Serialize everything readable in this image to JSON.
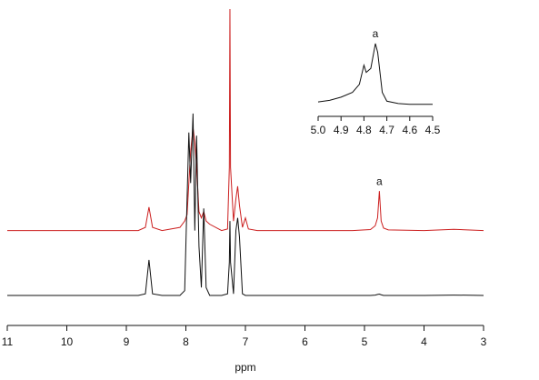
{
  "chart_data": [
    {
      "type": "line",
      "xlabel": "ppm",
      "xlim": [
        11,
        3
      ],
      "xticks": [
        11,
        10,
        9,
        8,
        7,
        6,
        5,
        4,
        3
      ],
      "ylim": [
        0,
        100
      ],
      "x": [
        11,
        10,
        9,
        8.8,
        8.68,
        8.62,
        8.56,
        8.4,
        8.1,
        8.02,
        7.98,
        7.95,
        7.92,
        7.88,
        7.85,
        7.82,
        7.78,
        7.74,
        7.7,
        7.66,
        7.6,
        7.4,
        7.3,
        7.27,
        7.26,
        7.25,
        7.2,
        7.16,
        7.13,
        7.1,
        7.05,
        7.0,
        6.95,
        6.8,
        6,
        5.2,
        4.9,
        4.82,
        4.78,
        4.75,
        4.72,
        4.68,
        4.6,
        4,
        3.5,
        3
      ],
      "series": [
        {
          "color": "#cc1f1f",
          "values": [
            30,
            30,
            30,
            30,
            31,
            37.4,
            31,
            30,
            31,
            33,
            35,
            45,
            55,
            62.6,
            58,
            50,
            36,
            34,
            36,
            33,
            32,
            30,
            30.5,
            50,
            100,
            50,
            33,
            40,
            44,
            38,
            31,
            34,
            30.5,
            30,
            30,
            30,
            30.3,
            31.5,
            34,
            42.5,
            33,
            30.8,
            30.2,
            30,
            30.4,
            30
          ]
        },
        {
          "color": "#111111",
          "values": [
            9.5,
            9.5,
            9.5,
            9.5,
            10,
            20.7,
            10,
            9.5,
            9.5,
            11,
            40,
            61,
            45,
            67,
            30,
            60,
            25,
            12,
            37,
            12,
            9.5,
            9.5,
            10,
            20,
            33,
            20,
            10,
            30,
            34,
            28,
            10,
            9.5,
            9.5,
            9.5,
            9.5,
            9.5,
            9.5,
            9.6,
            9.8,
            9.9,
            9.7,
            9.5,
            9.5,
            9.5,
            9.6,
            9.5
          ]
        }
      ],
      "annotations": [
        {
          "text": "a",
          "x": 4.75
        }
      ]
    },
    {
      "type": "line",
      "xlim": [
        5.0,
        4.5
      ],
      "xticks": [
        {
          "value": 5.0,
          "label": "5.0"
        },
        4.9,
        4.8,
        4.7,
        4.6,
        4.5
      ],
      "ylim": [
        0,
        100
      ],
      "x": [
        5.0,
        4.95,
        4.9,
        4.85,
        4.82,
        4.8,
        4.79,
        4.77,
        4.75,
        4.74,
        4.72,
        4.7,
        4.65,
        4.6,
        4.55,
        4.5
      ],
      "series": [
        {
          "color": "#111111",
          "values": [
            18,
            20,
            24,
            30,
            40,
            64,
            55,
            60,
            91,
            80,
            30,
            19,
            16,
            15,
            15,
            15
          ]
        }
      ],
      "annotations": [
        {
          "text": "a",
          "x": 4.75
        }
      ]
    }
  ]
}
